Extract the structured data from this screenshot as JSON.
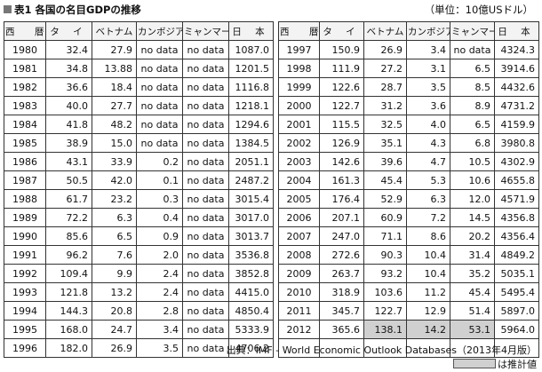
{
  "title": "表1 各国の名目GDPの推移",
  "unit": "（単位：10億USドル）",
  "headers": [
    "西　暦",
    "タ イ",
    "ベトナム",
    "カンボジア",
    "ミャンマー",
    "日 本"
  ],
  "left_rows": [
    [
      "1980",
      "32.4",
      "27.9",
      "no data",
      "no data",
      "1087.0"
    ],
    [
      "1981",
      "34.8",
      "13.88",
      "no data",
      "no data",
      "1201.5"
    ],
    [
      "1982",
      "36.6",
      "18.4",
      "no data",
      "no data",
      "1116.8"
    ],
    [
      "1983",
      "40.0",
      "27.7",
      "no data",
      "no data",
      "1218.1"
    ],
    [
      "1984",
      "41.8",
      "48.2",
      "no data",
      "no data",
      "1294.6"
    ],
    [
      "1985",
      "38.9",
      "15.0",
      "no data",
      "no data",
      "1384.5"
    ],
    [
      "1986",
      "43.1",
      "33.9",
      "0.2",
      "no data",
      "2051.1"
    ],
    [
      "1987",
      "50.5",
      "42.0",
      "0.1",
      "no data",
      "2487.2"
    ],
    [
      "1988",
      "61.7",
      "23.2",
      "0.3",
      "no data",
      "3015.4"
    ],
    [
      "1989",
      "72.2",
      "6.3",
      "0.4",
      "no data",
      "3017.0"
    ],
    [
      "1990",
      "85.6",
      "6.5",
      "0.9",
      "no data",
      "3013.7"
    ],
    [
      "1991",
      "96.2",
      "7.6",
      "2.0",
      "no data",
      "3536.8"
    ],
    [
      "1992",
      "109.4",
      "9.9",
      "2.4",
      "no data",
      "3852.8"
    ],
    [
      "1993",
      "121.8",
      "13.2",
      "2.4",
      "no data",
      "4415.0"
    ],
    [
      "1994",
      "144.3",
      "20.8",
      "2.8",
      "no data",
      "4850.4"
    ],
    [
      "1995",
      "168.0",
      "24.7",
      "3.4",
      "no data",
      "5333.9"
    ],
    [
      "1996",
      "182.0",
      "26.9",
      "3.5",
      "no data",
      "4706.2"
    ]
  ],
  "right_rows": [
    [
      "1997",
      "150.9",
      "26.9",
      "3.4",
      "no data",
      "4324.3"
    ],
    [
      "1998",
      "111.9",
      "27.2",
      "3.1",
      "6.5",
      "3914.6"
    ],
    [
      "1999",
      "122.6",
      "28.7",
      "3.5",
      "8.5",
      "4432.6"
    ],
    [
      "2000",
      "122.7",
      "31.2",
      "3.6",
      "8.9",
      "4731.2"
    ],
    [
      "2001",
      "115.5",
      "32.5",
      "4.0",
      "6.5",
      "4159.9"
    ],
    [
      "2002",
      "126.9",
      "35.1",
      "4.3",
      "6.8",
      "3980.8"
    ],
    [
      "2003",
      "142.6",
      "39.6",
      "4.7",
      "10.5",
      "4302.9"
    ],
    [
      "2004",
      "161.3",
      "45.4",
      "5.3",
      "10.6",
      "4655.8"
    ],
    [
      "2005",
      "176.4",
      "52.9",
      "6.3",
      "12.0",
      "4571.9"
    ],
    [
      "2006",
      "207.1",
      "60.9",
      "7.2",
      "14.5",
      "4356.8"
    ],
    [
      "2007",
      "247.0",
      "71.1",
      "8.6",
      "20.2",
      "4356.4"
    ],
    [
      "2008",
      "272.6",
      "90.3",
      "10.4",
      "31.4",
      "4849.2"
    ],
    [
      "2009",
      "263.7",
      "93.2",
      "10.4",
      "35.2",
      "5035.1"
    ],
    [
      "2010",
      "318.9",
      "103.6",
      "11.2",
      "45.4",
      "5495.4"
    ],
    [
      "2011",
      "345.7",
      "122.7",
      "12.9",
      "51.4",
      "5897.0"
    ],
    [
      "2012",
      "365.6",
      "138.1",
      "14.2",
      "53.1",
      "5964.0"
    ]
  ],
  "estimated_cells": [
    [
      15,
      2
    ],
    [
      15,
      3
    ],
    [
      15,
      4
    ]
  ],
  "source": "出典：IMF - World Economic Outlook Databases（2013年4月版）",
  "legend_text": "は推計値",
  "colors": {
    "estimate_fill": "#d0d0d0",
    "header_fill": "#f3f3f3"
  }
}
